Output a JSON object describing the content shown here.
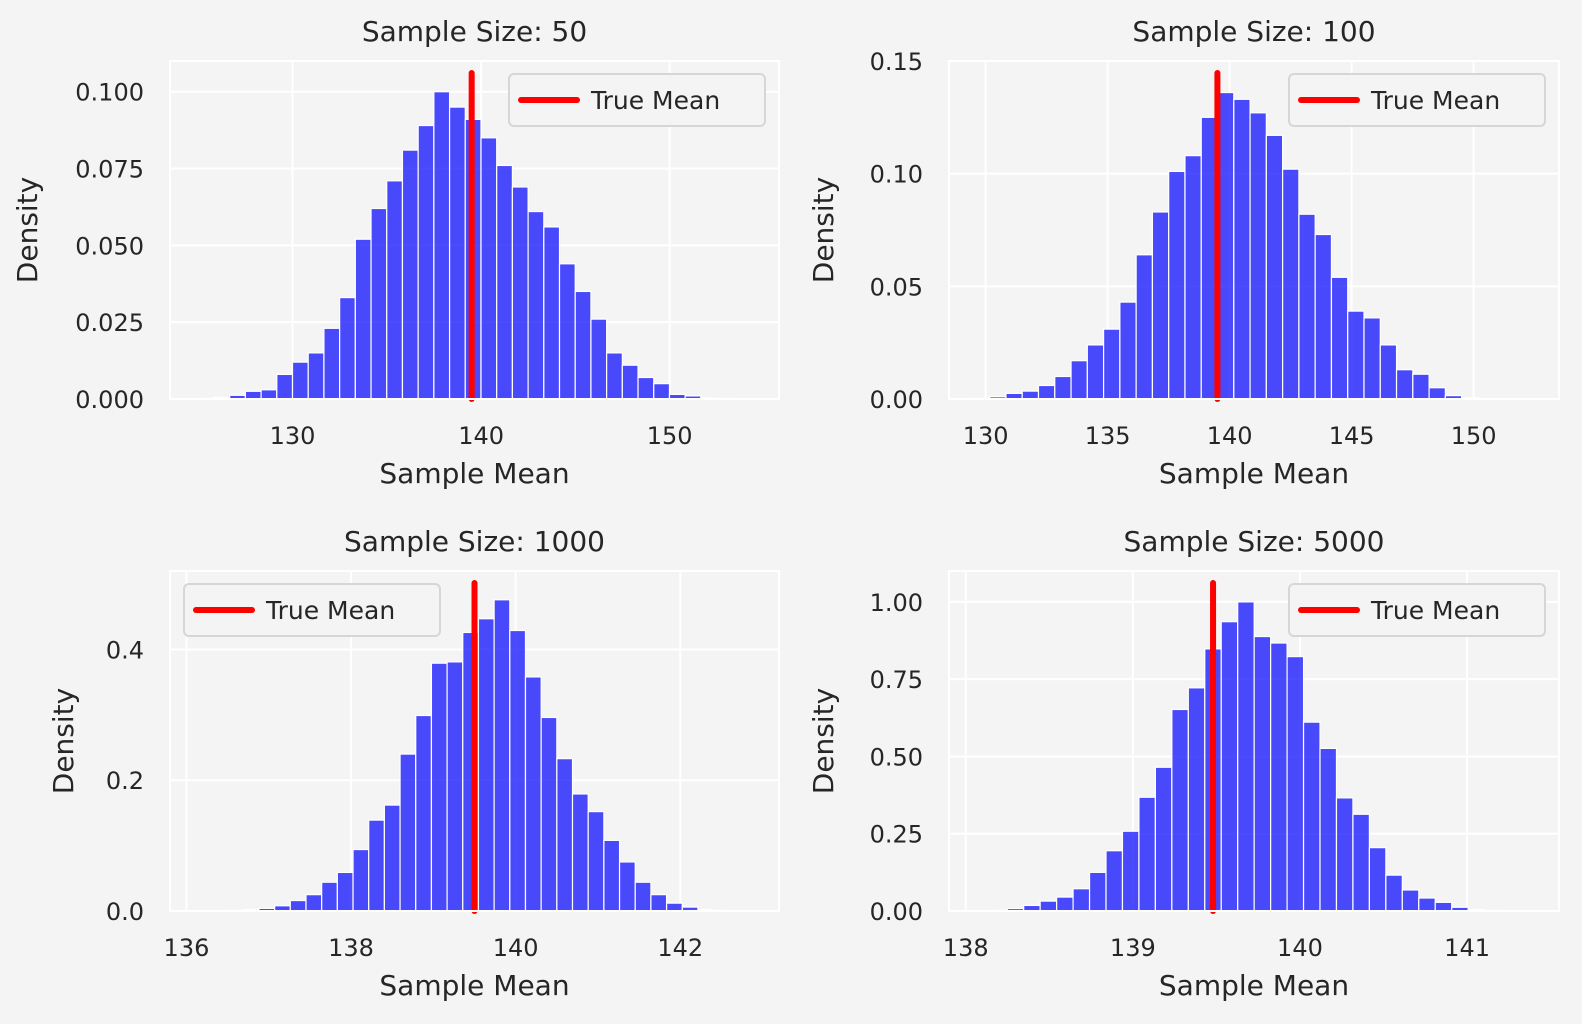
{
  "colors": {
    "background": "#f4f4f4",
    "axes_bg": "#f4f4f4",
    "grid": "#ffffff",
    "bars": "#0000ff",
    "true_mean_line": "#ff0000"
  },
  "chart_data": [
    {
      "type": "bar",
      "title": "Sample Size: 50",
      "xlabel": "Sample Mean",
      "ylabel": "Density",
      "xlim": [
        123.5,
        155.8
      ],
      "ylim": [
        0,
        0.11
      ],
      "xticks": [
        130,
        140,
        150
      ],
      "xtick_labels": [
        "130",
        "140",
        "150"
      ],
      "yticks": [
        0,
        0.025,
        0.05,
        0.075,
        0.1
      ],
      "ytick_labels": [
        "0.000",
        "0.025",
        "0.050",
        "0.075",
        "0.100"
      ],
      "grid": true,
      "legend": {
        "position": "top-right",
        "entries": [
          "True Mean"
        ]
      },
      "true_mean": 139.5,
      "bin_start": 125.0,
      "bin_width": 0.833,
      "values": [
        0.0002,
        0.0005,
        0.0012,
        0.0025,
        0.003,
        0.008,
        0.012,
        0.015,
        0.023,
        0.033,
        0.052,
        0.062,
        0.071,
        0.081,
        0.089,
        0.1,
        0.095,
        0.091,
        0.085,
        0.076,
        0.069,
        0.061,
        0.056,
        0.044,
        0.035,
        0.026,
        0.015,
        0.011,
        0.007,
        0.005,
        0.0015,
        0.001,
        0.0003,
        0.0002,
        0.0001
      ]
    },
    {
      "type": "bar",
      "title": "Sample Size: 100",
      "xlabel": "Sample Mean",
      "ylabel": "Density",
      "xlim": [
        128.5,
        153.5
      ],
      "ylim": [
        0,
        0.15
      ],
      "xticks": [
        130,
        135,
        140,
        145,
        150
      ],
      "xtick_labels": [
        "130",
        "135",
        "140",
        "145",
        "150"
      ],
      "yticks": [
        0,
        0.05,
        0.1,
        0.15
      ],
      "ytick_labels": [
        "0.00",
        "0.05",
        "0.10",
        "0.15"
      ],
      "grid": true,
      "legend": {
        "position": "top-right",
        "entries": [
          "True Mean"
        ]
      },
      "true_mean": 139.5,
      "bin_start": 129.5,
      "bin_width": 0.667,
      "values": [
        0.0003,
        0.001,
        0.0025,
        0.0035,
        0.006,
        0.01,
        0.017,
        0.024,
        0.031,
        0.043,
        0.064,
        0.083,
        0.101,
        0.108,
        0.125,
        0.136,
        0.133,
        0.127,
        0.117,
        0.102,
        0.082,
        0.073,
        0.054,
        0.039,
        0.036,
        0.024,
        0.013,
        0.011,
        0.005,
        0.0015,
        0.0005,
        0.0002
      ]
    },
    {
      "type": "bar",
      "title": "Sample Size: 1000",
      "xlabel": "Sample Mean",
      "ylabel": "Density",
      "xlim": [
        135.8,
        143.2
      ],
      "ylim": [
        0,
        0.52
      ],
      "xticks": [
        136,
        138,
        140,
        142
      ],
      "xtick_labels": [
        "136",
        "138",
        "140",
        "142"
      ],
      "yticks": [
        0,
        0.2,
        0.4
      ],
      "ytick_labels": [
        "0.0",
        "0.2",
        "0.4"
      ],
      "grid": true,
      "legend": {
        "position": "top-left",
        "entries": [
          "True Mean"
        ]
      },
      "true_mean": 139.5,
      "bin_start": 136.5,
      "bin_width": 0.1905,
      "values": [
        0.001,
        0.002,
        0.004,
        0.008,
        0.016,
        0.025,
        0.044,
        0.059,
        0.094,
        0.139,
        0.162,
        0.24,
        0.299,
        0.379,
        0.381,
        0.426,
        0.447,
        0.476,
        0.429,
        0.358,
        0.296,
        0.233,
        0.179,
        0.152,
        0.108,
        0.075,
        0.044,
        0.025,
        0.012,
        0.006,
        0.002,
        0.001
      ]
    },
    {
      "type": "bar",
      "title": "Sample Size: 5000",
      "xlabel": "Sample Mean",
      "ylabel": "Density",
      "xlim": [
        137.9,
        141.55
      ],
      "ylim": [
        0,
        1.1
      ],
      "xticks": [
        138,
        139,
        140,
        141
      ],
      "xtick_labels": [
        "138",
        "139",
        "140",
        "141"
      ],
      "yticks": [
        0,
        0.25,
        0.5,
        0.75,
        1.0
      ],
      "ytick_labels": [
        "0.00",
        "0.25",
        "0.50",
        "0.75",
        "1.00"
      ],
      "grid": true,
      "legend": {
        "position": "top-right",
        "entries": [
          "True Mean"
        ]
      },
      "true_mean": 139.48,
      "bin_start": 138.15,
      "bin_width": 0.0985,
      "values": [
        0.002,
        0.008,
        0.018,
        0.032,
        0.045,
        0.072,
        0.125,
        0.195,
        0.258,
        0.368,
        0.465,
        0.652,
        0.722,
        0.848,
        0.936,
        1.0,
        0.888,
        0.867,
        0.823,
        0.611,
        0.526,
        0.366,
        0.313,
        0.205,
        0.116,
        0.068,
        0.042,
        0.028,
        0.012,
        0.004,
        0.002,
        0.001
      ]
    }
  ]
}
